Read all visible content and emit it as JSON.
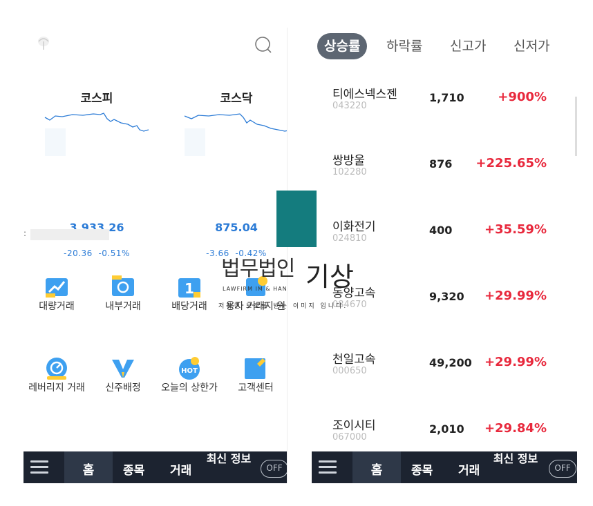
{
  "left_panel": {
    "indices": [
      {
        "name": "코스피",
        "value": "3,933.26",
        "change": "-20.36",
        "change_pct": "-0.51%"
      },
      {
        "name": "코스닥",
        "value": "875.04",
        "change": "-3.66",
        "change_pct": "-0.42%"
      }
    ],
    "colon": ":",
    "menu": [
      {
        "label": "대량거래",
        "icon": "chart-up-icon"
      },
      {
        "label": "내부거래",
        "icon": "exchange-icon"
      },
      {
        "label": "배당거래",
        "icon": "dividend-icon"
      },
      {
        "label": "용자 거래지 원",
        "icon": "loan-icon"
      },
      {
        "label": "레버리지 거래",
        "icon": "leverage-icon"
      },
      {
        "label": "신주배정",
        "icon": "new-share-icon"
      },
      {
        "label": "오늘의 상한가",
        "icon": "hot-icon"
      },
      {
        "label": "고객센터",
        "icon": "support-icon"
      }
    ]
  },
  "right_panel": {
    "tabs": [
      "상승률",
      "하락률",
      "신고가",
      "신저가"
    ],
    "active_tab": "상승률",
    "stocks": [
      {
        "name": "티에스넥스젠",
        "code": "043220",
        "price": "1,710",
        "pct": "+900%"
      },
      {
        "name": "쌍방울",
        "code": "102280",
        "price": "876",
        "pct": "+225.65%"
      },
      {
        "name": "이화전기",
        "code": "024810",
        "price": "400",
        "pct": "+35.59%"
      },
      {
        "name": "동양고속",
        "code": "084670",
        "price": "9,320",
        "pct": "+29.99%"
      },
      {
        "name": "천일고속",
        "code": "000650",
        "price": "49,200",
        "pct": "+29.99%"
      },
      {
        "name": "조이시티",
        "code": "067000",
        "price": "2,010",
        "pct": "+29.84%"
      }
    ]
  },
  "nav": {
    "menu_label": "메뉴",
    "home": "홈",
    "stocks": "종목",
    "trade": "거래",
    "latest": "최신 정보",
    "toggle": "OFF"
  },
  "watermark": {
    "korean": "법무법인",
    "big": "기상",
    "english": "LAWFIRM IM & HAN",
    "sub": "저작권 보호를 받는 이미지 입니다."
  },
  "colors": {
    "navbar": "#1c2330",
    "up": "#e8283c",
    "down": "#2b7bd6",
    "active_tab": "#5d6672",
    "watermark_box": "#147c7e"
  }
}
